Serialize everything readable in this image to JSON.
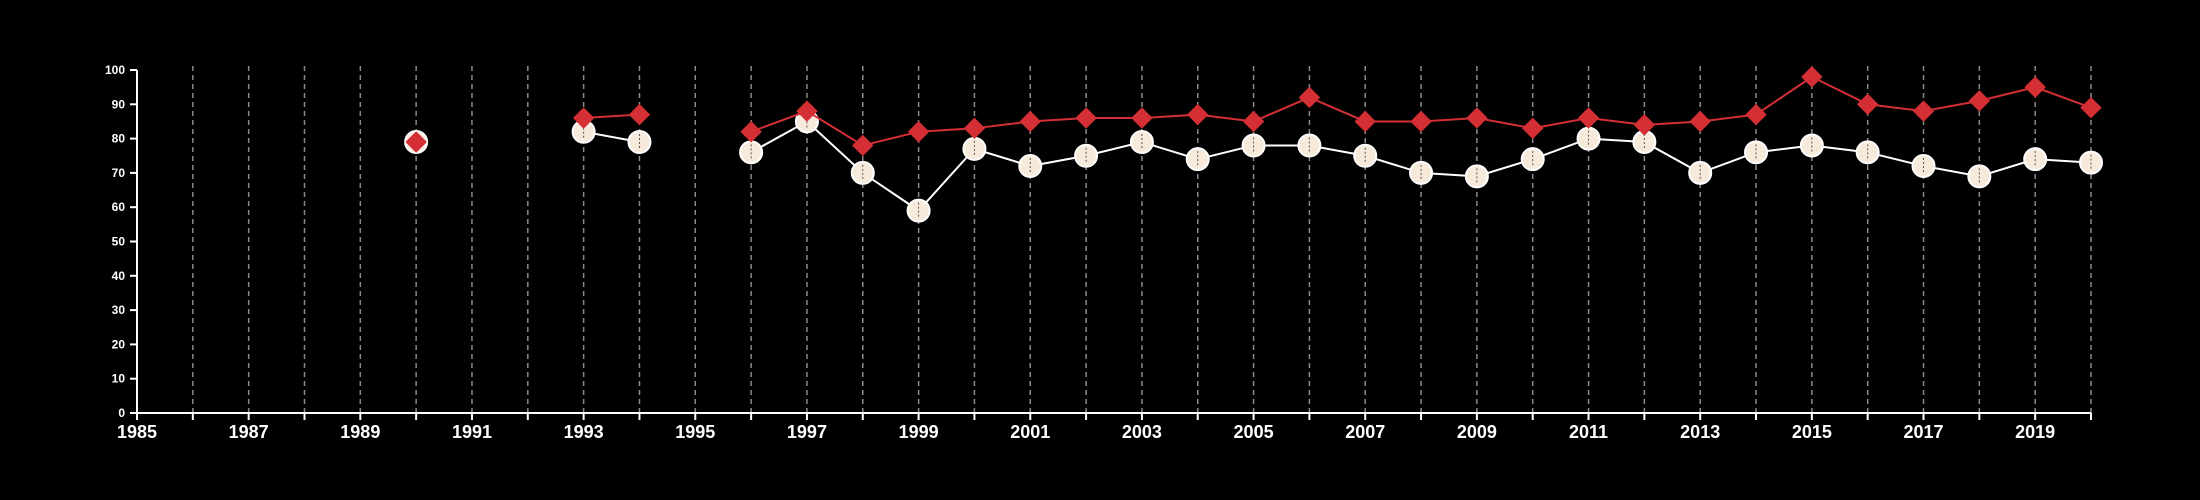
{
  "colors": {
    "background": "#000000",
    "axis": "#ffffff",
    "gridline": "#8a8a8a",
    "series_red": "#d32f35",
    "series_white_fill": "#f7eadb",
    "series_white_line": "#ffffff"
  },
  "chart_data": {
    "type": "line",
    "grid": "vertical dashed lines at each year",
    "legend": "none",
    "xlim": [
      1985,
      2020
    ],
    "ylim": [
      0,
      100
    ],
    "x_ticks": [
      1985,
      1986,
      1987,
      1988,
      1989,
      1990,
      1991,
      1992,
      1993,
      1994,
      1995,
      1996,
      1997,
      1998,
      1999,
      2000,
      2001,
      2002,
      2003,
      2004,
      2005,
      2006,
      2007,
      2008,
      2009,
      2010,
      2011,
      2012,
      2013,
      2014,
      2015,
      2016,
      2017,
      2018,
      2019,
      2020
    ],
    "x_tick_labels": [
      "1985",
      "1987",
      "1989",
      "1991",
      "1993",
      "1995",
      "1997",
      "1999",
      "2001",
      "2003",
      "2005",
      "2007",
      "2009",
      "2011",
      "2013",
      "2015",
      "2017",
      "2019"
    ],
    "y_tick_labels": [
      "0",
      "10",
      "20",
      "30",
      "40",
      "50",
      "60",
      "70",
      "80",
      "90",
      "100"
    ],
    "series": [
      {
        "marker": "diamond",
        "color": "#d32f35",
        "x": [
          1990,
          1993,
          1994,
          1996,
          1997,
          1998,
          1999,
          2000,
          2001,
          2002,
          2003,
          2004,
          2005,
          2006,
          2007,
          2008,
          2009,
          2010,
          2011,
          2012,
          2013,
          2014,
          2015,
          2016,
          2017,
          2018,
          2019,
          2020
        ],
        "values": [
          79,
          86,
          87,
          82,
          88,
          78,
          82,
          83,
          85,
          86,
          86,
          87,
          85,
          92,
          85,
          85,
          86,
          83,
          86,
          84,
          85,
          87,
          98,
          90,
          88,
          91,
          95,
          89
        ]
      },
      {
        "marker": "circle",
        "color": "#f7eadb",
        "x": [
          1990,
          1993,
          1994,
          1996,
          1997,
          1998,
          1999,
          2000,
          2001,
          2002,
          2003,
          2004,
          2005,
          2006,
          2007,
          2008,
          2009,
          2010,
          2011,
          2012,
          2013,
          2014,
          2015,
          2016,
          2017,
          2018,
          2019,
          2020
        ],
        "values": [
          79,
          82,
          79,
          76,
          85,
          70,
          59,
          77,
          72,
          75,
          79,
          74,
          78,
          78,
          75,
          70,
          69,
          74,
          80,
          79,
          70,
          76,
          78,
          76,
          72,
          69,
          74,
          73
        ]
      }
    ]
  }
}
